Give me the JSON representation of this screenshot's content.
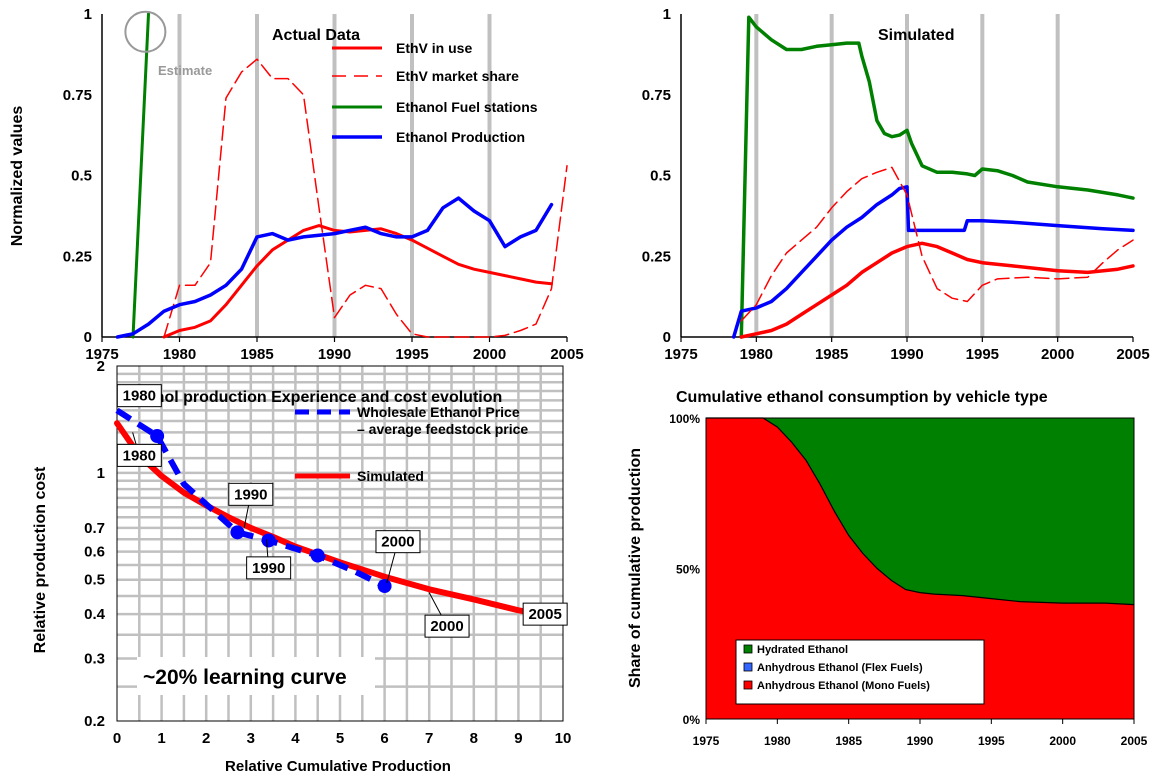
{
  "chart_data": [
    {
      "id": "actual",
      "type": "line",
      "title": "Actual Data",
      "ylabel": "Normalized values",
      "xlim": [
        1975,
        2005
      ],
      "ylim": [
        0,
        1
      ],
      "xticks": [
        "1975",
        "1980",
        "1985",
        "1990",
        "1995",
        "2000",
        "2005"
      ],
      "yticks": [
        "0",
        "0.25",
        "0.5",
        "0.75",
        "1"
      ],
      "grid": "vertical",
      "legend_position": "top-right",
      "annotation": "Estimate",
      "series": [
        {
          "name": "EthV in use",
          "color": "#ff0000",
          "dash": false,
          "width": 3,
          "x": [
            1979,
            1980,
            1981,
            1982,
            1983,
            1984,
            1985,
            1986,
            1987,
            1988,
            1989,
            1990,
            1991,
            1992,
            1993,
            1994,
            1995,
            1996,
            1997,
            1998,
            1999,
            2000,
            2001,
            2002,
            2003,
            2004
          ],
          "y": [
            0,
            0.02,
            0.03,
            0.05,
            0.1,
            0.16,
            0.22,
            0.27,
            0.3,
            0.33,
            0.345,
            0.33,
            0.325,
            0.33,
            0.335,
            0.32,
            0.3,
            0.275,
            0.25,
            0.225,
            0.21,
            0.2,
            0.19,
            0.18,
            0.17,
            0.165
          ]
        },
        {
          "name": "EthV market share",
          "color": "#ff0000",
          "dash": true,
          "width": 1.5,
          "x": [
            1979,
            1980,
            1981,
            1982,
            1983,
            1984,
            1985,
            1986,
            1987,
            1988,
            1989,
            1990,
            1991,
            1992,
            1993,
            1994,
            1995,
            1996,
            2000,
            2001,
            2002,
            2003,
            2004,
            2005
          ],
          "y": [
            0,
            0.16,
            0.16,
            0.23,
            0.74,
            0.82,
            0.86,
            0.8,
            0.8,
            0.75,
            0.4,
            0.06,
            0.13,
            0.16,
            0.15,
            0.07,
            0.01,
            0.0,
            0.0,
            0.005,
            0.02,
            0.04,
            0.15,
            0.53
          ]
        },
        {
          "name": "Ethanol Fuel stations",
          "color": "#008000",
          "dash": false,
          "width": 3,
          "x": [
            1977,
            1978
          ],
          "y": [
            0,
            1
          ]
        },
        {
          "name": "Ethanol Production",
          "color": "#0000ff",
          "dash": false,
          "width": 3.5,
          "x": [
            1976,
            1977,
            1978,
            1979,
            1980,
            1981,
            1982,
            1983,
            1984,
            1985,
            1986,
            1987,
            1988,
            1989,
            1990,
            1991,
            1992,
            1993,
            1994,
            1995,
            1996,
            1997,
            1998,
            1999,
            2000,
            2001,
            2002,
            2003,
            2004
          ],
          "y": [
            0,
            0.01,
            0.04,
            0.08,
            0.1,
            0.11,
            0.13,
            0.16,
            0.21,
            0.31,
            0.32,
            0.3,
            0.31,
            0.315,
            0.32,
            0.33,
            0.34,
            0.32,
            0.31,
            0.31,
            0.33,
            0.4,
            0.43,
            0.39,
            0.36,
            0.28,
            0.31,
            0.33,
            0.41
          ]
        }
      ]
    },
    {
      "id": "simulated",
      "type": "line",
      "title": "Simulated",
      "xlim": [
        1975,
        2005
      ],
      "ylim": [
        0,
        1
      ],
      "xticks": [
        "1975",
        "1980",
        "1985",
        "1990",
        "1995",
        "2000",
        "2005"
      ],
      "yticks": [
        "0",
        "0.25",
        "0.5",
        "0.75",
        "1"
      ],
      "grid": "vertical",
      "series": [
        {
          "color": "#008000",
          "dash": false,
          "width": 3.5,
          "x": [
            1979,
            1979.5,
            1980,
            1981,
            1982,
            1983,
            1984,
            1985,
            1986,
            1986.8,
            1987,
            1987.5,
            1988,
            1988.5,
            1989,
            1989.5,
            1990,
            1990.3,
            1991,
            1992,
            1993,
            1994,
            1994.5,
            1995,
            1996,
            1997,
            1998,
            2000,
            2002,
            2004,
            2005
          ],
          "y": [
            0,
            0.99,
            0.96,
            0.92,
            0.89,
            0.89,
            0.9,
            0.905,
            0.91,
            0.91,
            0.87,
            0.79,
            0.67,
            0.63,
            0.62,
            0.625,
            0.64,
            0.6,
            0.53,
            0.51,
            0.51,
            0.505,
            0.5,
            0.52,
            0.515,
            0.5,
            0.48,
            0.465,
            0.455,
            0.44,
            0.43
          ]
        },
        {
          "color": "#0000ff",
          "dash": false,
          "width": 3.5,
          "x": [
            1978.5,
            1979,
            1980,
            1981,
            1982,
            1983,
            1984,
            1985,
            1986,
            1987,
            1988,
            1989,
            1989.5,
            1990,
            1990.1,
            1991,
            1992,
            1993,
            1993.8,
            1994,
            1995,
            1997,
            2000,
            2003,
            2005
          ],
          "y": [
            0,
            0.08,
            0.09,
            0.11,
            0.15,
            0.2,
            0.25,
            0.3,
            0.34,
            0.37,
            0.41,
            0.44,
            0.46,
            0.465,
            0.33,
            0.33,
            0.33,
            0.33,
            0.33,
            0.36,
            0.36,
            0.355,
            0.345,
            0.335,
            0.33
          ]
        },
        {
          "color": "#ff0000",
          "dash": true,
          "width": 1.5,
          "x": [
            1979,
            1980,
            1981,
            1982,
            1983,
            1984,
            1985,
            1986,
            1987,
            1988,
            1989,
            1990,
            1991,
            1992,
            1993,
            1994,
            1995,
            1996,
            1998,
            2000,
            2002,
            2003,
            2004,
            2005
          ],
          "y": [
            0.05,
            0.1,
            0.19,
            0.26,
            0.3,
            0.34,
            0.4,
            0.45,
            0.49,
            0.51,
            0.525,
            0.44,
            0.25,
            0.15,
            0.12,
            0.11,
            0.16,
            0.18,
            0.185,
            0.18,
            0.185,
            0.23,
            0.27,
            0.3
          ]
        },
        {
          "color": "#ff0000",
          "dash": false,
          "width": 3.5,
          "x": [
            1979,
            1980,
            1981,
            1982,
            1983,
            1984,
            1985,
            1986,
            1987,
            1988,
            1989,
            1990,
            1991,
            1992,
            1993,
            1994,
            1995,
            1997,
            2000,
            2002,
            2004,
            2005
          ],
          "y": [
            0,
            0.01,
            0.02,
            0.04,
            0.07,
            0.1,
            0.13,
            0.16,
            0.2,
            0.23,
            0.26,
            0.28,
            0.29,
            0.28,
            0.26,
            0.24,
            0.23,
            0.22,
            0.205,
            0.2,
            0.21,
            0.22
          ]
        }
      ]
    },
    {
      "id": "learning",
      "type": "line",
      "title": "Ethanol production Experience and cost evolution",
      "xlabel": "Relative Cumulative Production",
      "ylabel": "Relative production cost",
      "xlim": [
        0,
        10
      ],
      "ylim": [
        0.2,
        2
      ],
      "yscale": "log",
      "xticks": [
        "0",
        "1",
        "2",
        "3",
        "4",
        "5",
        "6",
        "7",
        "8",
        "9",
        "10"
      ],
      "yticks": [
        {
          "v": 0.2,
          "label": "0.2"
        },
        {
          "v": 0.3,
          "label": "0.3"
        },
        {
          "v": 0.4,
          "label": "0.4"
        },
        {
          "v": 0.5,
          "label": "0.5"
        },
        {
          "v": 0.6,
          "label": "0.6"
        },
        {
          "v": 0.7,
          "label": "0.7"
        },
        {
          "v": 1,
          "label": "1"
        },
        {
          "v": 2,
          "label": "2"
        }
      ],
      "grid": "both",
      "legend_position": "top-right",
      "annotation": "~20% learning curve",
      "series": [
        {
          "name": "Wholesale Ethanol Price\n– average feedstock price",
          "color": "#0000ff",
          "dash": true,
          "width": 6,
          "x": [
            0,
            0.9,
            1.5,
            2.7,
            3.4,
            4.5,
            5.3,
            6.0
          ],
          "y": [
            1.5,
            1.27,
            0.93,
            0.68,
            0.645,
            0.585,
            0.53,
            0.48
          ],
          "markers_x": [
            0.9,
            2.7,
            3.4,
            4.5,
            6.0
          ],
          "markers_y": [
            1.27,
            0.68,
            0.645,
            0.585,
            0.48
          ]
        },
        {
          "name": "Simulated",
          "color": "#ff0000",
          "dash": false,
          "width": 6,
          "x": [
            0,
            0.5,
            1,
            1.5,
            2,
            2.5,
            3,
            3.5,
            4,
            5,
            6,
            7,
            8,
            9,
            10
          ],
          "y": [
            1.38,
            1.12,
            0.98,
            0.88,
            0.81,
            0.75,
            0.7,
            0.66,
            0.62,
            0.56,
            0.51,
            0.47,
            0.44,
            0.41,
            0.39
          ]
        }
      ],
      "labels": [
        {
          "text": "1980",
          "x": 0.0,
          "y": 1.55,
          "tx": 0.5,
          "ty": 1.65
        },
        {
          "text": "1980",
          "x": 0.35,
          "y": 1.3,
          "tx": 0.5,
          "ty": 1.12
        },
        {
          "text": "1990",
          "x": 2.85,
          "y": 0.7,
          "tx": 3.0,
          "ty": 0.87
        },
        {
          "text": "1990",
          "x": 3.35,
          "y": 0.65,
          "tx": 3.4,
          "ty": 0.54
        },
        {
          "text": "2000",
          "x": 6.05,
          "y": 0.49,
          "tx": 6.3,
          "ty": 0.64
        },
        {
          "text": "2000",
          "x": 7.0,
          "y": 0.46,
          "tx": 7.4,
          "ty": 0.37
        },
        {
          "text": "2005",
          "x": 9.6,
          "y": 0.4,
          "tx": 9.6,
          "ty": 0.4
        }
      ]
    },
    {
      "id": "cumulative",
      "type": "area",
      "title": "Cumulative ethanol consumption by vehicle type",
      "ylabel": "Share of cumulative production",
      "xlim": [
        1975,
        2005
      ],
      "ylim": [
        0,
        100
      ],
      "xticks": [
        "1975",
        "1980",
        "1985",
        "1990",
        "1995",
        "2000",
        "2005"
      ],
      "yticks": [
        {
          "v": 0,
          "label": "0%"
        },
        {
          "v": 50,
          "label": "50%"
        },
        {
          "v": 100,
          "label": "100%"
        }
      ],
      "legend_position": "bottom-left",
      "x": [
        1975,
        1979,
        1980,
        1981,
        1982,
        1983,
        1984,
        1985,
        1986,
        1987,
        1988,
        1989,
        1990,
        1991,
        1993,
        1995,
        1997,
        2000,
        2003,
        2005
      ],
      "series": [
        {
          "name": "Hydrated Ethanol",
          "color": "#008000",
          "values": [
            0,
            0,
            3,
            8,
            14,
            22,
            31,
            39,
            45,
            50,
            54,
            57,
            58,
            58.5,
            59,
            60,
            61,
            61.5,
            61.5,
            62
          ]
        },
        {
          "name": "Anhydrous Ethanol (Flex Fuels)",
          "color": "#3366ff",
          "values": [
            0,
            0,
            0,
            0,
            0,
            0,
            0,
            0,
            0,
            0,
            0,
            0,
            0,
            0,
            0,
            0,
            0,
            0,
            0,
            0
          ]
        },
        {
          "name": "Anhydrous Ethanol (Mono Fuels)",
          "color": "#ff0000",
          "values": [
            100,
            100,
            97,
            92,
            86,
            78,
            69,
            61,
            55,
            50,
            46,
            43,
            42,
            41.5,
            41,
            40,
            39,
            38.5,
            38.5,
            38
          ]
        }
      ]
    }
  ]
}
